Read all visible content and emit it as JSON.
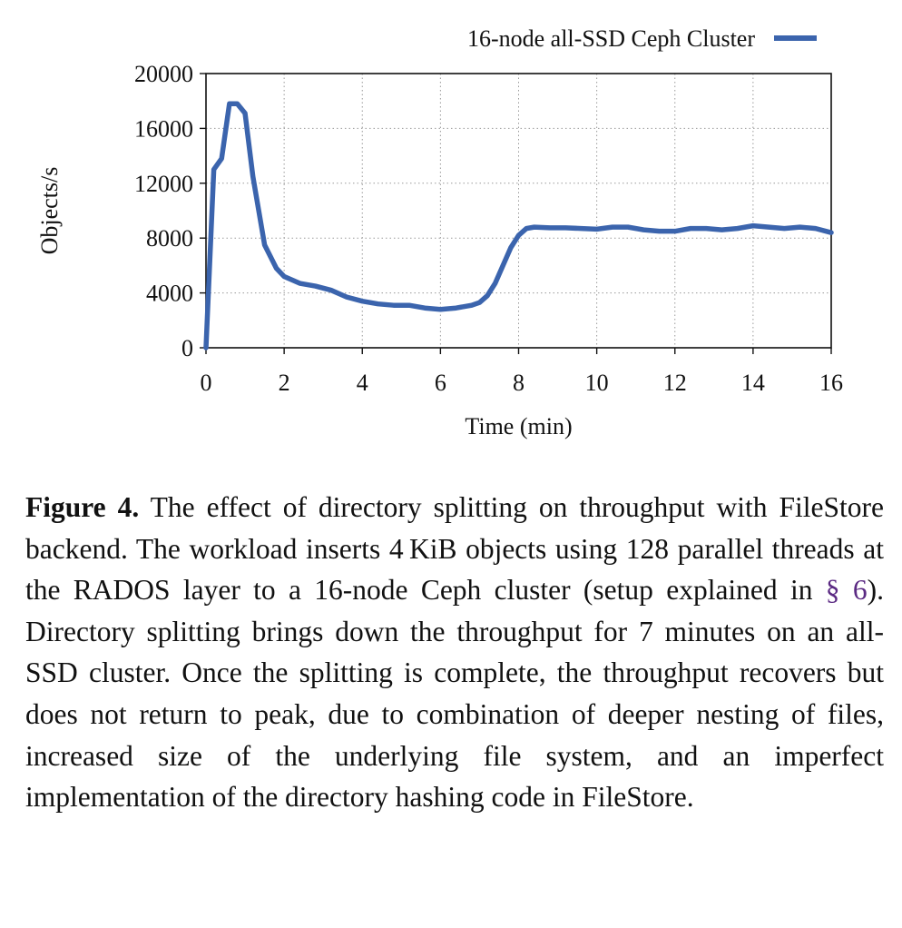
{
  "chart_data": {
    "type": "line",
    "title": "",
    "xlabel": "Time (min)",
    "ylabel": "Objects/s",
    "xlim": [
      0,
      16
    ],
    "ylim": [
      0,
      20000
    ],
    "xticks": [
      0,
      2,
      4,
      6,
      8,
      10,
      12,
      14,
      16
    ],
    "yticks": [
      0,
      4000,
      8000,
      12000,
      16000,
      20000
    ],
    "grid": true,
    "legend_position": "top-right",
    "series": [
      {
        "name": "16-node all-SSD Ceph Cluster",
        "color": "#3b64ad",
        "x": [
          0,
          0.2,
          0.4,
          0.6,
          0.8,
          1.0,
          1.2,
          1.5,
          1.8,
          2.0,
          2.4,
          2.8,
          3.2,
          3.6,
          4.0,
          4.4,
          4.8,
          5.2,
          5.6,
          6.0,
          6.4,
          6.8,
          7.0,
          7.2,
          7.4,
          7.6,
          7.8,
          8.0,
          8.2,
          8.4,
          8.8,
          9.2,
          9.6,
          10.0,
          10.4,
          10.8,
          11.2,
          11.6,
          12.0,
          12.4,
          12.8,
          13.2,
          13.6,
          14.0,
          14.4,
          14.8,
          15.2,
          15.6,
          16.0
        ],
        "y": [
          0,
          13000,
          13800,
          17800,
          17800,
          17100,
          12500,
          7500,
          5800,
          5200,
          4700,
          4500,
          4200,
          3700,
          3400,
          3200,
          3100,
          3100,
          2900,
          2800,
          2900,
          3100,
          3300,
          3800,
          4700,
          6000,
          7300,
          8200,
          8700,
          8800,
          8750,
          8750,
          8700,
          8650,
          8800,
          8800,
          8600,
          8500,
          8500,
          8700,
          8700,
          8600,
          8700,
          8900,
          8800,
          8700,
          8800,
          8700,
          8400
        ]
      }
    ]
  },
  "caption": {
    "label": "Figure 4.",
    "text_before_ref": " The effect of directory splitting on throughput with FileStore backend. The workload inserts 4 KiB objects using 128 parallel threads at the RADOS layer to a 16-node Ceph cluster (setup explained in ",
    "ref": "§ 6",
    "text_after_ref": "). Directory splitting brings down the throughput for 7 minutes on an all-SSD cluster. Once the splitting is complete, the throughput re­covers but does not return to peak, due to combination of deeper nesting of files, increased size of the underlying file system, and an imperfect implementation of the directory hashing code in FileStore."
  }
}
